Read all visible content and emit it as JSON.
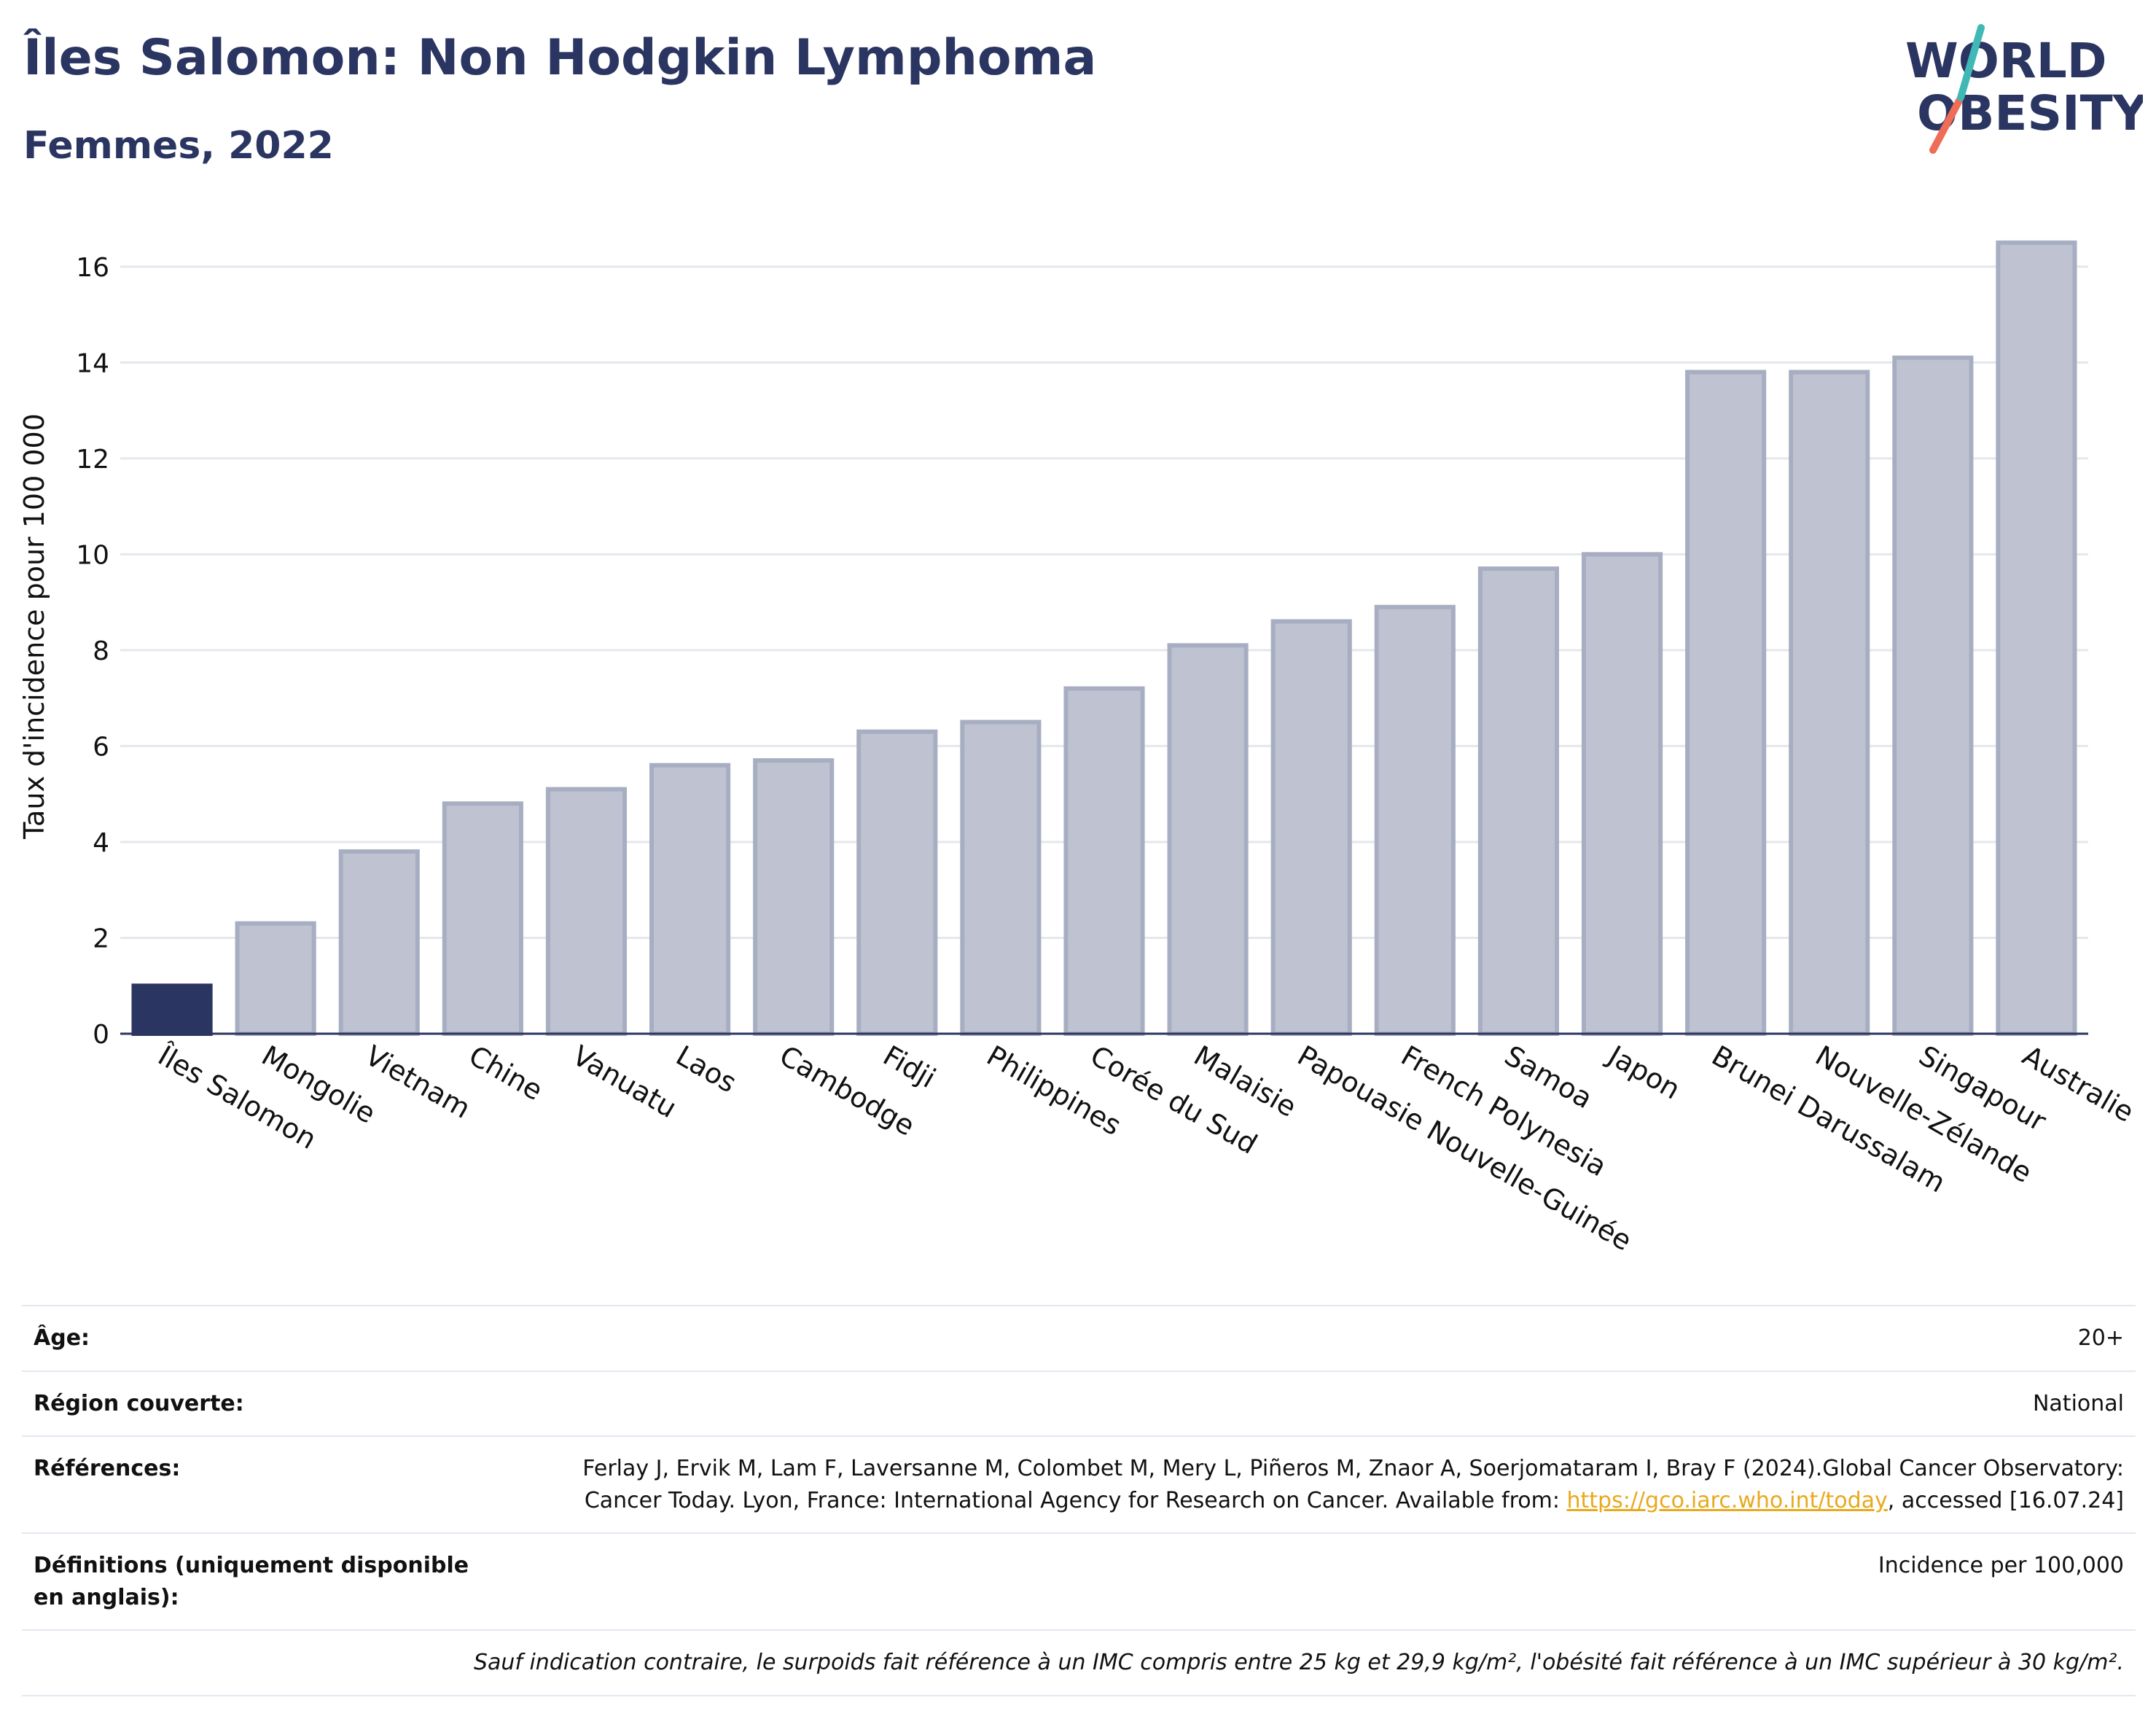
{
  "header": {
    "title": "Îles Salomon: Non Hodgkin Lymphoma",
    "subtitle": "Femmes, 2022"
  },
  "logo": {
    "line1": "WORLD",
    "line2": "OBESITY",
    "colors": [
      "#2b3561",
      "#ef6c57",
      "#3fb8b6"
    ]
  },
  "colors": {
    "highlight": "#2b3561",
    "bar_fill": "#bfc3d1",
    "bar_stroke": "#a8aec2",
    "grid": "#e5e7ee",
    "axis": "#2b3561",
    "link": "#e8a91c"
  },
  "chart_data": {
    "type": "bar",
    "title": "Îles Salomon: Non Hodgkin Lymphoma",
    "subtitle": "Femmes, 2022",
    "xlabel": "",
    "ylabel": "Taux d'incidence pour 100 000",
    "ylim": [
      0,
      17
    ],
    "yticks": [
      0,
      2,
      4,
      6,
      8,
      10,
      12,
      14,
      16
    ],
    "grid": true,
    "highlight": "Îles Salomon",
    "categories": [
      "Îles Salomon",
      "Mongolie",
      "Vietnam",
      "Chine",
      "Vanuatu",
      "Laos",
      "Cambodge",
      "Fidji",
      "Philippines",
      "Corée du Sud",
      "Malaisie",
      "Papouasie Nouvelle-Guinée",
      "French Polynesia",
      "Samoa",
      "Japon",
      "Brunei Darussalam",
      "Nouvelle-Zélande",
      "Singapour",
      "Australie"
    ],
    "values": [
      1.0,
      2.3,
      3.8,
      4.8,
      5.1,
      5.6,
      5.7,
      6.3,
      6.5,
      7.2,
      8.1,
      8.6,
      8.9,
      9.7,
      10.0,
      13.8,
      13.8,
      14.1,
      16.5
    ]
  },
  "info": {
    "age_label": "Âge:",
    "age_value": "20+",
    "region_label": "Région couverte:",
    "region_value": "National",
    "refs_label": "Références:",
    "refs_text_1": "Ferlay J, Ervik M, Lam F, Laversanne M, Colombet M, Mery L, Piñeros M, Znaor A, Soerjomataram I, Bray F (2024).Global Cancer Observatory: Cancer Today. Lyon, France: International Agency for Research on Cancer. Available from: ",
    "refs_link": "https://gco.iarc.who.int/today",
    "refs_text_2": ", accessed [16.07.24]",
    "defs_label": "Définitions (uniquement disponible en anglais):",
    "defs_value": "Incidence per 100,000",
    "note": "Sauf indication contraire, le surpoids fait référence à un IMC compris entre 25 kg et 29,9 kg/m², l'obésité fait référence à un IMC supérieur à 30 kg/m²."
  }
}
